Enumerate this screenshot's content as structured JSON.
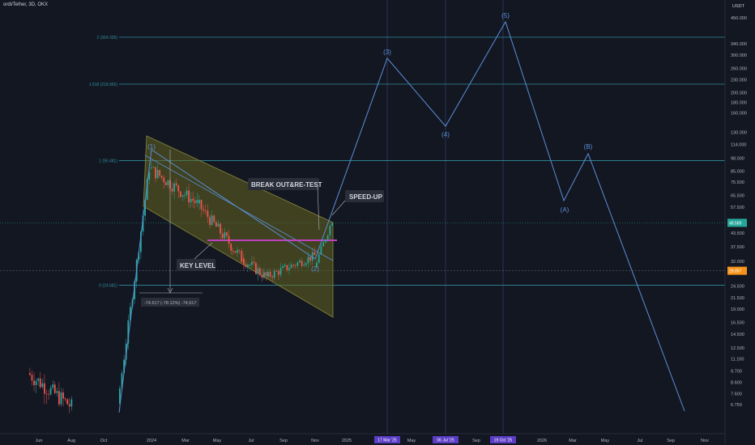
{
  "header": {
    "title": "ordi/Tether, 3D, OKX",
    "currency": "USDT"
  },
  "colors": {
    "background": "#131722",
    "up": "#26a69a",
    "down": "#ef5350",
    "fib": "#2f8f9d",
    "wave": "#5b8fd6",
    "channel_fill": "#6b6b1e",
    "key_level": "#c040c0",
    "last_price_tag": "#26a69a",
    "marker_tag": "#f7931a",
    "time_tag": "#5b3cc4"
  },
  "chart_data": {
    "type": "candlestick",
    "scale": "log",
    "y_ticks": [
      "450.000",
      "340.000",
      "300.000",
      "260.000",
      "230.000",
      "200.000",
      "180.000",
      "160.000",
      "130.000",
      "114.000",
      "98.000",
      "85.000",
      "75.500",
      "65.500",
      "57.500",
      "48.500",
      "43.500",
      "37.500",
      "32.000",
      "28.500",
      "24.500",
      "21.500",
      "19.000",
      "16.500",
      "14.500",
      "12.500",
      "11.100",
      "9.700",
      "8.600",
      "7.600",
      "6.750"
    ],
    "x_ticks": [
      "Jun",
      "Aug",
      "Oct",
      "2024",
      "Mar",
      "May",
      "Jul",
      "Sep",
      "Nov",
      "2025",
      "May",
      "Sep",
      "2026",
      "Mar",
      "May",
      "Jul",
      "Sep",
      "Nov"
    ],
    "time_markers": [
      "17 Mar '25",
      "06 Jul '25",
      "19 Oct '25"
    ],
    "last_price": "48.569",
    "marker_price": "28.857",
    "fib_levels": [
      {
        "label": "2 (364.336)",
        "value": 364.336
      },
      {
        "label": "1.618 (218.965)",
        "value": 218.965
      },
      {
        "label": "1 (95.481)",
        "value": 95.481
      },
      {
        "label": "0 (24.681)",
        "value": 24.681
      }
    ],
    "waves": [
      "(1)",
      "(2)",
      "(3)",
      "(4)",
      "(5)",
      "(A)",
      "(B)"
    ],
    "annotations": {
      "break_out": "BREAK OUT&RE-TEST",
      "speed_up": "SPEED-UP",
      "key_level": "KEY LEVEL",
      "measure": "-74.617 (-78.12%) -74,617"
    }
  }
}
